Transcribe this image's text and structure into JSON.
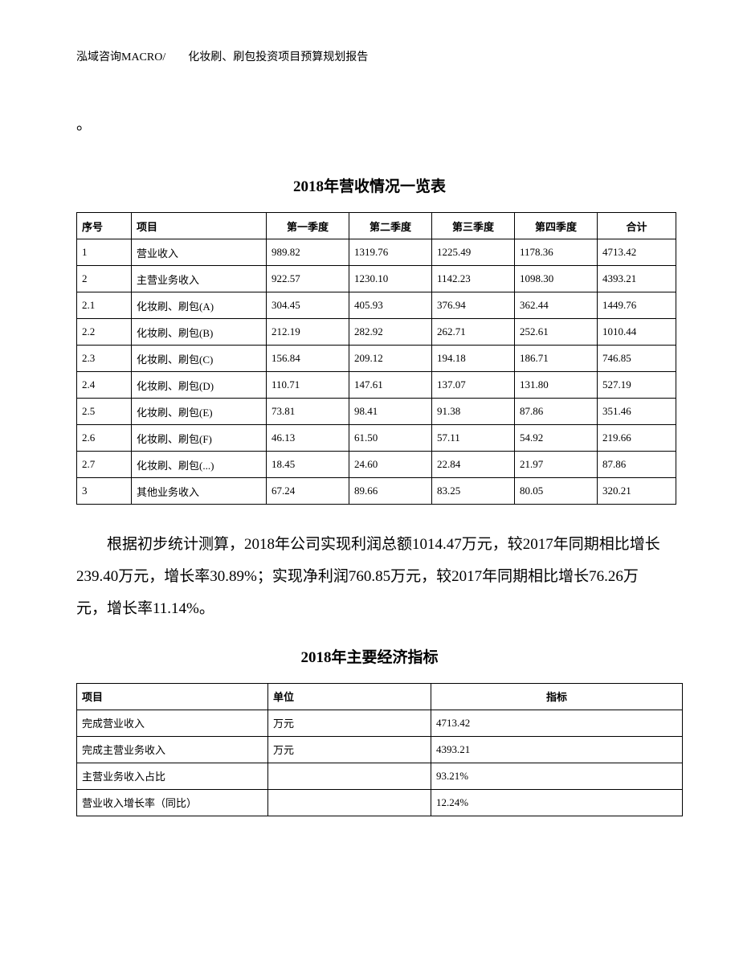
{
  "header": "泓域咨询MACRO/　　化妆刷、刷包投资项目预算规划报告",
  "period_mark": "。",
  "table1": {
    "title": "2018年营收情况一览表",
    "columns": [
      "序号",
      "项目",
      "第一季度",
      "第二季度",
      "第三季度",
      "第四季度",
      "合计"
    ],
    "rows": [
      [
        "1",
        "营业收入",
        "989.82",
        "1319.76",
        "1225.49",
        "1178.36",
        "4713.42"
      ],
      [
        "2",
        "主营业务收入",
        "922.57",
        "1230.10",
        "1142.23",
        "1098.30",
        "4393.21"
      ],
      [
        "2.1",
        "化妆刷、刷包(A)",
        "304.45",
        "405.93",
        "376.94",
        "362.44",
        "1449.76"
      ],
      [
        "2.2",
        "化妆刷、刷包(B)",
        "212.19",
        "282.92",
        "262.71",
        "252.61",
        "1010.44"
      ],
      [
        "2.3",
        "化妆刷、刷包(C)",
        "156.84",
        "209.12",
        "194.18",
        "186.71",
        "746.85"
      ],
      [
        "2.4",
        "化妆刷、刷包(D)",
        "110.71",
        "147.61",
        "137.07",
        "131.80",
        "527.19"
      ],
      [
        "2.5",
        "化妆刷、刷包(E)",
        "73.81",
        "98.41",
        "91.38",
        "87.86",
        "351.46"
      ],
      [
        "2.6",
        "化妆刷、刷包(F)",
        "46.13",
        "61.50",
        "57.11",
        "54.92",
        "219.66"
      ],
      [
        "2.7",
        "化妆刷、刷包(...)",
        "18.45",
        "24.60",
        "22.84",
        "21.97",
        "87.86"
      ],
      [
        "3",
        "其他业务收入",
        "67.24",
        "89.66",
        "83.25",
        "80.05",
        "320.21"
      ]
    ]
  },
  "paragraph": "根据初步统计测算，2018年公司实现利润总额1014.47万元，较2017年同期相比增长239.40万元，增长率30.89%；实现净利润760.85万元，较2017年同期相比增长76.26万元，增长率11.14%。",
  "table2": {
    "title": "2018年主要经济指标",
    "columns": [
      "项目",
      "单位",
      "指标"
    ],
    "rows": [
      [
        "完成营业收入",
        "万元",
        "4713.42"
      ],
      [
        "完成主营业务收入",
        "万元",
        "4393.21"
      ],
      [
        "主营业务收入占比",
        "",
        "93.21%"
      ],
      [
        "营业收入增长率（同比）",
        "",
        "12.24%"
      ]
    ]
  }
}
